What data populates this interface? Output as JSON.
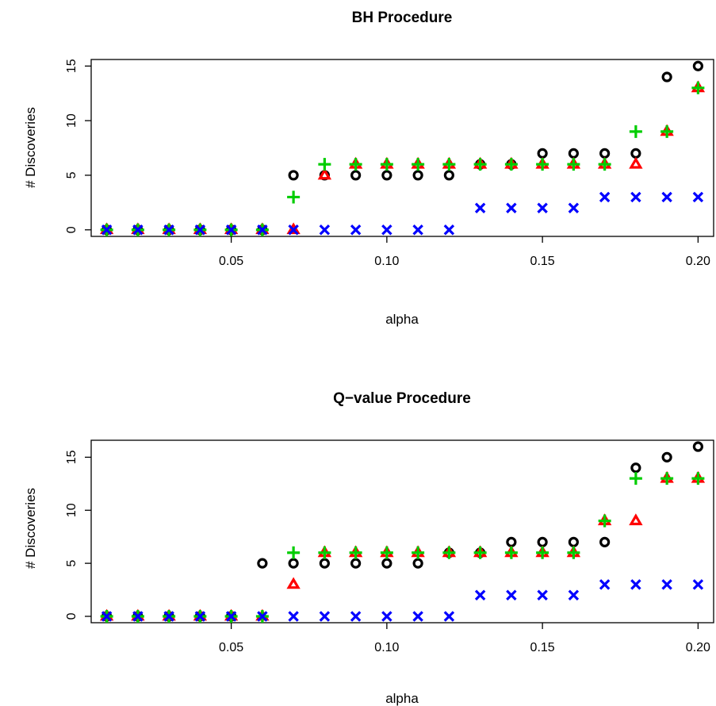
{
  "chart_data": [
    {
      "type": "scatter",
      "title": "BH Procedure",
      "xlabel": "alpha",
      "ylabel": "# Discoveries",
      "xlim": [
        0.005,
        0.205
      ],
      "ylim": [
        -0.6,
        15.6
      ],
      "x_ticks": [
        "0.05",
        "0.10",
        "0.15",
        "0.20"
      ],
      "y_ticks": [
        "0",
        "5",
        "10",
        "15"
      ],
      "x": [
        0.01,
        0.02,
        0.03,
        0.04,
        0.05,
        0.06,
        0.07,
        0.08,
        0.09,
        0.1,
        0.11,
        0.12,
        0.13,
        0.14,
        0.15,
        0.16,
        0.17,
        0.18,
        0.19,
        0.2
      ],
      "series": [
        {
          "marker": "circle",
          "color": "#000000",
          "values": [
            0,
            0,
            0,
            0,
            0,
            0,
            5,
            5,
            5,
            5,
            5,
            5,
            6,
            6,
            7,
            7,
            7,
            7,
            14,
            15
          ]
        },
        {
          "marker": "triangle",
          "color": "#ff0000",
          "values": [
            0,
            0,
            0,
            0,
            0,
            0,
            0,
            5,
            6,
            6,
            6,
            6,
            6,
            6,
            6,
            6,
            6,
            6,
            9,
            13
          ]
        },
        {
          "marker": "plus",
          "color": "#00cd00",
          "values": [
            0,
            0,
            0,
            0,
            0,
            0,
            3,
            6,
            6,
            6,
            6,
            6,
            6,
            6,
            6,
            6,
            6,
            9,
            9,
            13
          ]
        },
        {
          "marker": "x",
          "color": "#0000ff",
          "values": [
            0,
            0,
            0,
            0,
            0,
            0,
            0,
            0,
            0,
            0,
            0,
            0,
            2,
            2,
            2,
            2,
            3,
            3,
            3,
            3
          ]
        }
      ]
    },
    {
      "type": "scatter",
      "title": "Q−value Procedure",
      "xlabel": "alpha",
      "ylabel": "# Discoveries",
      "xlim": [
        0.005,
        0.205
      ],
      "ylim": [
        -0.6,
        16.6
      ],
      "x_ticks": [
        "0.05",
        "0.10",
        "0.15",
        "0.20"
      ],
      "y_ticks": [
        "0",
        "5",
        "10",
        "15"
      ],
      "x": [
        0.01,
        0.02,
        0.03,
        0.04,
        0.05,
        0.06,
        0.07,
        0.08,
        0.09,
        0.1,
        0.11,
        0.12,
        0.13,
        0.14,
        0.15,
        0.16,
        0.17,
        0.18,
        0.19,
        0.2
      ],
      "series": [
        {
          "marker": "circle",
          "color": "#000000",
          "values": [
            0,
            0,
            0,
            0,
            0,
            5,
            5,
            5,
            5,
            5,
            5,
            6,
            6,
            7,
            7,
            7,
            7,
            14,
            15,
            16
          ]
        },
        {
          "marker": "triangle",
          "color": "#ff0000",
          "values": [
            0,
            0,
            0,
            0,
            0,
            0,
            3,
            6,
            6,
            6,
            6,
            6,
            6,
            6,
            6,
            6,
            9,
            9,
            13,
            13
          ]
        },
        {
          "marker": "plus",
          "color": "#00cd00",
          "values": [
            0,
            0,
            0,
            0,
            0,
            0,
            6,
            6,
            6,
            6,
            6,
            6,
            6,
            6,
            6,
            6,
            9,
            13,
            13,
            13
          ]
        },
        {
          "marker": "x",
          "color": "#0000ff",
          "values": [
            0,
            0,
            0,
            0,
            0,
            0,
            0,
            0,
            0,
            0,
            0,
            0,
            2,
            2,
            2,
            2,
            3,
            3,
            3,
            3
          ]
        }
      ]
    }
  ]
}
